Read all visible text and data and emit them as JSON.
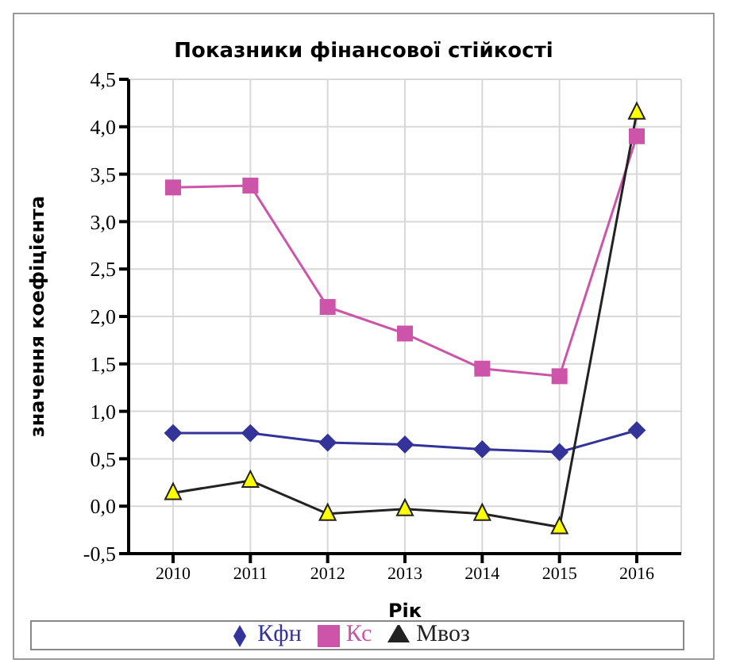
{
  "chart_data": {
    "type": "line",
    "title": "Показники фінансової стійкості",
    "xlabel": "Рік",
    "ylabel": "значення коефіцієнта",
    "categories": [
      "2010",
      "2011",
      "2012",
      "2013",
      "2014",
      "2015",
      "2016"
    ],
    "series": [
      {
        "name": "Кфн",
        "color": "#33339a",
        "marker": "diamond",
        "values": [
          0.77,
          0.77,
          0.67,
          0.65,
          0.6,
          0.57,
          0.8
        ]
      },
      {
        "name": "Кс",
        "color": "#cc55aa",
        "marker": "square",
        "values": [
          3.36,
          3.38,
          2.1,
          1.82,
          1.45,
          1.37,
          3.9
        ]
      },
      {
        "name": "Мвоз",
        "color": "#222222",
        "marker": "triangle",
        "values": [
          0.14,
          0.27,
          -0.08,
          -0.03,
          -0.08,
          -0.22,
          4.15
        ]
      }
    ],
    "ylim": [
      -0.5,
      4.5
    ],
    "yticks": [
      {
        "value": -0.5,
        "label": "-0,5"
      },
      {
        "value": 0,
        "label": "0,0"
      },
      {
        "value": 0.5,
        "label": "0,5"
      },
      {
        "value": 1,
        "label": "1,0"
      },
      {
        "value": 1.5,
        "label": "1,5"
      },
      {
        "value": 2,
        "label": "2,0"
      },
      {
        "value": 2.5,
        "label": "2,5"
      },
      {
        "value": 3,
        "label": "3,0"
      },
      {
        "value": 3.5,
        "label": "3,5"
      },
      {
        "value": 4,
        "label": "4,0"
      },
      {
        "value": 4.5,
        "label": "4,5"
      }
    ],
    "grid": true,
    "legend": "bottom"
  }
}
